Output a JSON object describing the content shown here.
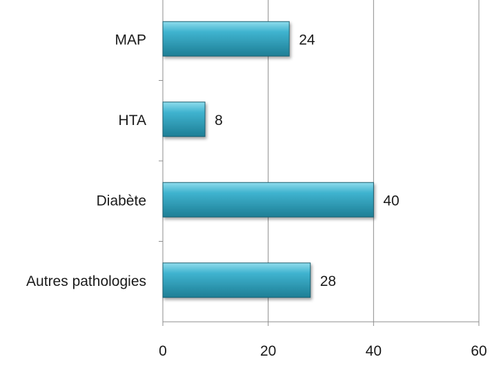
{
  "chart_data": {
    "type": "bar",
    "orientation": "horizontal",
    "categories": [
      "MAP",
      "HTA",
      "Diabète",
      "Autres pathologies"
    ],
    "values": [
      24,
      8,
      40,
      28
    ],
    "xlim": [
      0,
      60
    ],
    "x_ticks": [
      0,
      20,
      40,
      60
    ],
    "grid": true,
    "legend": "none",
    "bar_color": "#3fb3cf",
    "bar_color_dark": "#1e7e95",
    "bar_color_light": "#8fdcec"
  }
}
